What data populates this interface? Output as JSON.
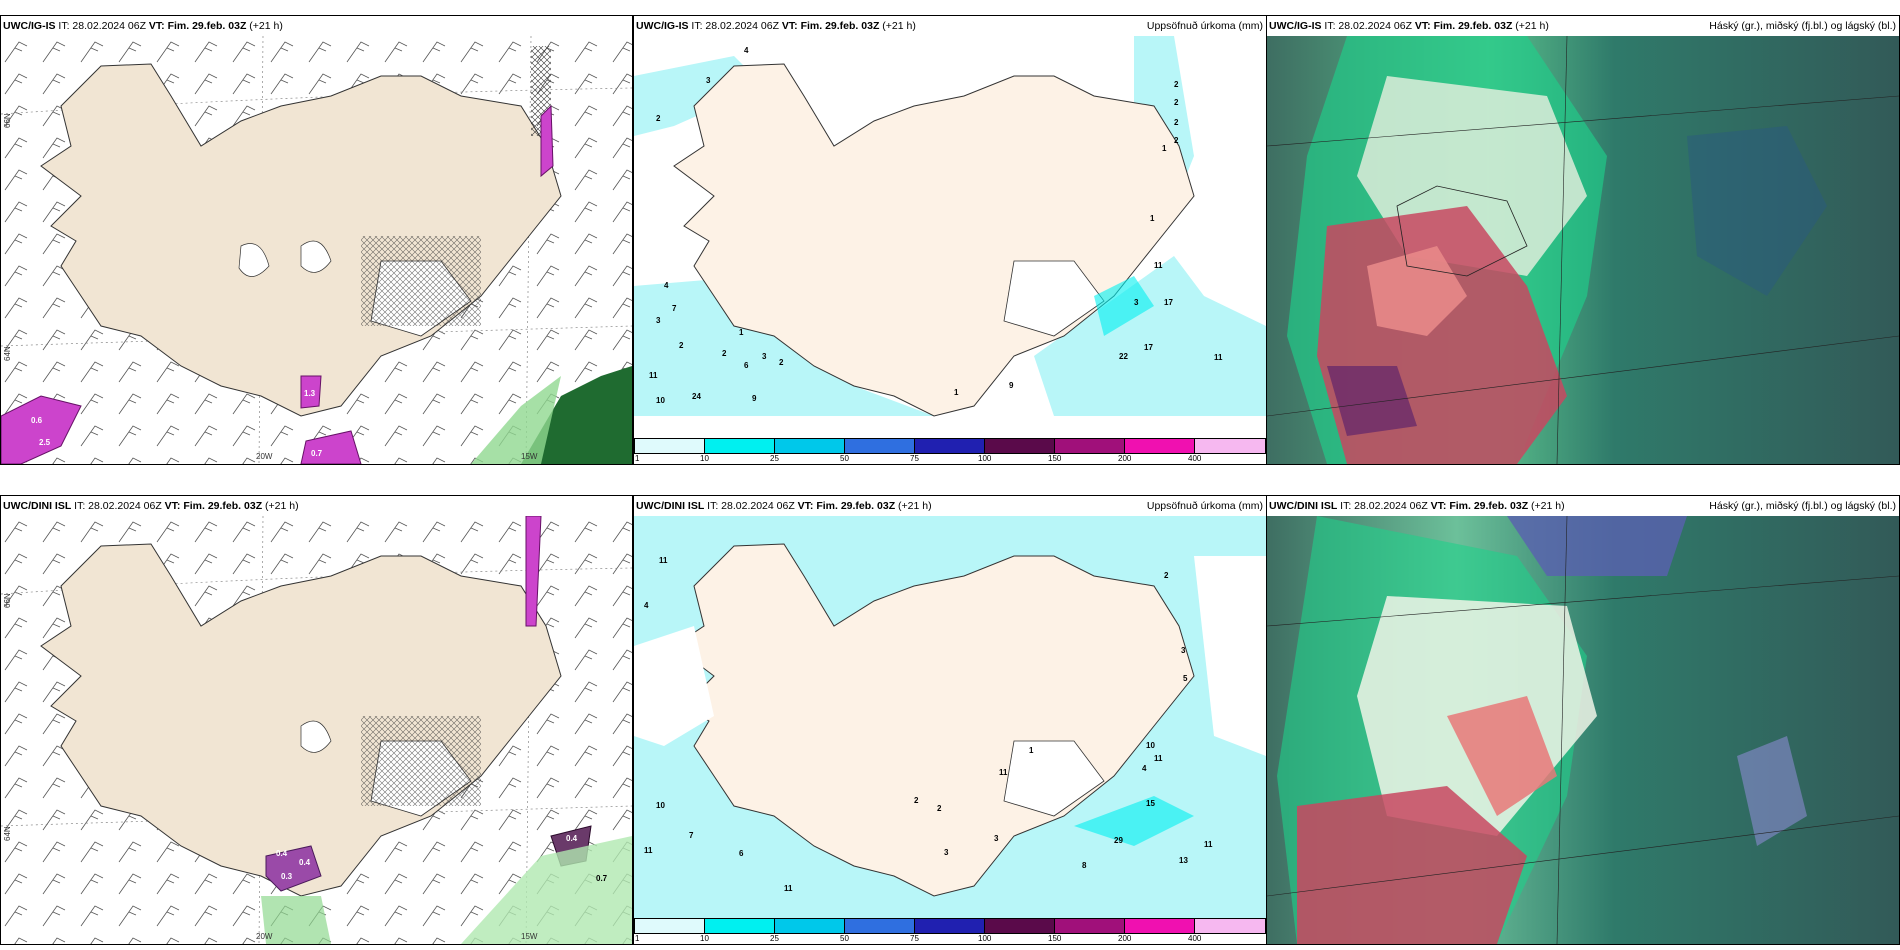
{
  "panels": {
    "p1": {
      "model": "UWC/IG-IS",
      "it_label": "IT: 28.02.2024 06Z",
      "vt": "VT: Fim. 29.feb. 03Z",
      "lead": "(+21 h)",
      "right": ""
    },
    "p2": {
      "model": "UWC/IG-IS",
      "it_label": "IT: 28.02.2024 06Z",
      "vt": "VT: Fim. 29.feb. 03Z",
      "lead": "(+21 h)",
      "right": "Uppsöfnuð úrkoma (mm)"
    },
    "p3": {
      "model": "UWC/IG-IS",
      "it_label": "IT: 28.02.2024 06Z",
      "vt": "VT: Fim. 29.feb. 03Z",
      "lead": "(+21 h)",
      "right": "Háský (gr.), miðský (fj.bl.) og lágský (bl.)"
    },
    "p4": {
      "model": "UWC/DINI ISL",
      "it_label": "IT: 28.02.2024 06Z",
      "vt": "VT: Fim. 29.feb. 03Z",
      "lead": "(+21 h)",
      "right": ""
    },
    "p5": {
      "model": "UWC/DINI ISL",
      "it_label": "IT: 28.02.2024 06Z",
      "vt": "VT: Fim. 29.feb. 03Z",
      "lead": "(+21 h)",
      "right": "Uppsöfnuð úrkoma (mm)"
    },
    "p6": {
      "model": "UWC/DINI ISL",
      "it_label": "IT: 28.02.2024 06Z",
      "vt": "VT: Fim. 29.feb. 03Z",
      "lead": "(+21 h)",
      "right": "Háský (gr.), miðský (fj.bl.) og lágský (bl.)"
    }
  },
  "axis_labels": {
    "lat66": "66N",
    "lat64": "64N",
    "lon20": "20W",
    "lon15": "15W"
  },
  "ice_values": {
    "p1": [
      "0.6",
      "2.5",
      "1.3",
      "0.7"
    ],
    "p4": [
      "0.4",
      "0.4",
      "0.3",
      "0.4",
      "0.7"
    ]
  },
  "precip_values": {
    "p2": [
      "4",
      "3",
      "2",
      "2",
      "2",
      "2",
      "2",
      "1",
      "1",
      "11",
      "17",
      "17",
      "22",
      "11",
      "4",
      "7",
      "3",
      "2",
      "2",
      "6",
      "3",
      "2",
      "1",
      "11",
      "10",
      "24",
      "9",
      "1",
      "9",
      "3"
    ],
    "p5": [
      "11",
      "4",
      "2",
      "3",
      "5",
      "10",
      "11",
      "4",
      "15",
      "29",
      "11",
      "13",
      "10",
      "7",
      "11",
      "6",
      "2",
      "2",
      "3",
      "3",
      "8",
      "1",
      "11",
      "11"
    ]
  },
  "colorbar": {
    "ticks": [
      "1",
      "10",
      "25",
      "50",
      "75",
      "100",
      "150",
      "200",
      "400"
    ],
    "colors": [
      "#dffafc",
      "#00f0f0",
      "#00c8ea",
      "#2f6fe0",
      "#2020b0",
      "#5a0a4a",
      "#a0107a",
      "#f010b0",
      "#f6b8f0"
    ]
  },
  "colors": {
    "land": "#f1e5d3",
    "ice_fill": "#cc44cc",
    "land_precip": "#fdf2e6",
    "sea_precip": "#b8f6f8"
  }
}
